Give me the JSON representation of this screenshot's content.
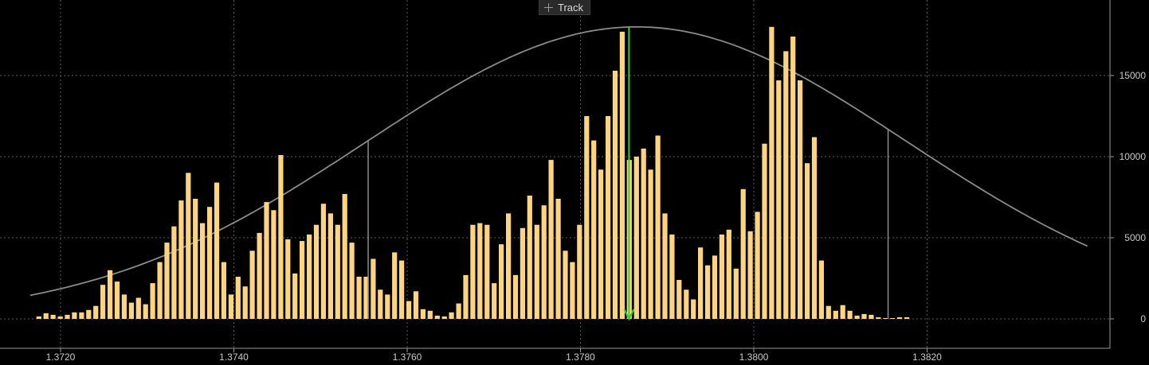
{
  "toolbar": {
    "track_label": "Track",
    "track_icon": "crosshair-icon"
  },
  "chart_data": {
    "type": "bar",
    "xlim": [
      1.3716,
      1.384
    ],
    "ylim": [
      -1800,
      19500
    ],
    "x_ticks": [
      1.372,
      1.374,
      1.376,
      1.378,
      1.38,
      1.382
    ],
    "x_tick_labels": [
      "1.3720",
      "1.3740",
      "1.3760",
      "1.3780",
      "1.3800",
      "1.3820"
    ],
    "y_ticks": [
      0,
      5000,
      10000,
      15000
    ],
    "y_tick_labels": [
      "0",
      "5000",
      "10000",
      "15000"
    ],
    "y_axis_position": "right",
    "grid": true,
    "colors": {
      "bars": "#ffd47f",
      "curve": "#8a8a8a",
      "marker": "#2fd22f",
      "grid": "#5a5a5a",
      "axis": "#9a9a9a"
    },
    "bin_start": 1.37175,
    "bin_width": 8.21e-05,
    "values": [
      150,
      350,
      250,
      150,
      250,
      400,
      400,
      550,
      800,
      2100,
      3000,
      2300,
      1500,
      1000,
      1300,
      900,
      2200,
      3500,
      4700,
      5700,
      7300,
      9000,
      7400,
      5900,
      6900,
      8400,
      3500,
      1500,
      2600,
      2000,
      4200,
      5300,
      7200,
      6700,
      10100,
      4900,
      2800,
      4800,
      5200,
      5800,
      7100,
      6500,
      5800,
      7700,
      4700,
      2600,
      2600,
      3700,
      1800,
      1500,
      4100,
      3600,
      1100,
      1700,
      600,
      500,
      200,
      150,
      400,
      950,
      2700,
      5800,
      5900,
      5800,
      2200,
      4600,
      6500,
      2700,
      5600,
      7600,
      5800,
      7000,
      9800,
      7400,
      4200,
      3500,
      5800,
      12500,
      11000,
      9200,
      12500,
      15300,
      17700,
      9800,
      10000,
      10500,
      9200,
      11300,
      6500,
      5200,
      2400,
      1800,
      1200,
      4400,
      3300,
      3900,
      5200,
      5500,
      3100,
      8000,
      5400,
      6600,
      10800,
      18000,
      14700,
      16500,
      17400,
      14700,
      9600,
      11200,
      3600,
      800,
      500,
      850,
      500,
      200,
      300,
      250,
      100,
      50,
      50,
      100,
      100
    ],
    "distribution_curve": {
      "mean": 1.37865,
      "peak": 18000,
      "sigma": 0.00312,
      "x_range": [
        1.37165,
        1.38385
      ]
    },
    "sigma_lines": [
      1.37555,
      1.38155
    ],
    "marker": {
      "x": 1.37856,
      "from_y": 18000,
      "to_y": 0,
      "direction": "down"
    }
  }
}
